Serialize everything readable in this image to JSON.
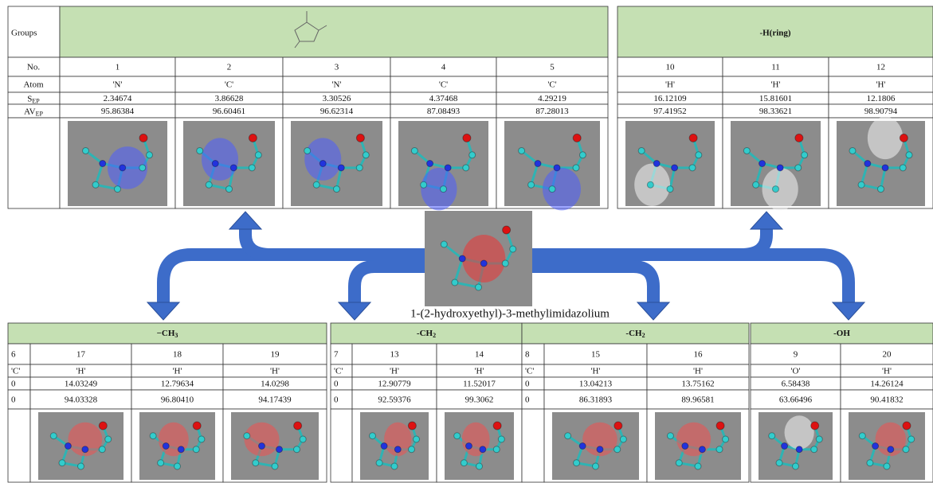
{
  "top_left": {
    "header_label": "Groups",
    "row_labels": [
      "No.",
      "Atom",
      {
        "text": "S",
        "sub": "EP"
      },
      {
        "text": "AV",
        "sub": "EP"
      }
    ],
    "columns": [
      [
        "1",
        "'N'",
        "2.34674",
        "95.86384"
      ],
      [
        "2",
        "'C'",
        "3.86628",
        "96.60461"
      ],
      [
        "3",
        "'N'",
        "3.30526",
        "96.62314"
      ],
      [
        "4",
        "'C'",
        "4.37468",
        "87.08493"
      ],
      [
        "5",
        "'C'",
        "4.29219",
        "87.28013"
      ]
    ]
  },
  "top_right": {
    "header": "-H(ring)",
    "columns": [
      [
        "10",
        "'H'",
        "16.12109",
        "97.41952"
      ],
      [
        "11",
        "'H'",
        "15.81601",
        "98.33621"
      ],
      [
        "12",
        "'H'",
        "12.1806",
        "98.90794"
      ]
    ]
  },
  "center_label": "1-(2-hydroxyethyl)-3-methylimidazolium",
  "bottom_tables": [
    {
      "header": {
        "text": "−CH",
        "sub": "3"
      },
      "columns": [
        [
          "6",
          "'C'",
          "0",
          "0"
        ],
        [
          "17",
          "'H'",
          "14.03249",
          "94.03328"
        ],
        [
          "18",
          "'H'",
          "12.79634",
          "96.80410"
        ],
        [
          "19",
          "'H'",
          "14.0298",
          "94.17439"
        ]
      ]
    },
    {
      "header": {
        "text": "-CH",
        "sub": "2"
      },
      "columns": [
        [
          "7",
          "'C'",
          "0",
          "0"
        ],
        [
          "13",
          "'H'",
          "12.90779",
          "92.59376"
        ],
        [
          "14",
          "'H'",
          "11.52017",
          "99.3062"
        ]
      ]
    },
    {
      "header": {
        "text": "-CH",
        "sub": "2"
      },
      "columns": [
        [
          "8",
          "'C'",
          "0",
          "0"
        ],
        [
          "15",
          "'H'",
          "13.04213",
          "86.31893"
        ],
        [
          "16",
          "'H'",
          "13.75162",
          "89.96581"
        ]
      ]
    },
    {
      "header": {
        "text": "-OH"
      },
      "columns": [
        [
          "9",
          "'O'",
          "6.58438",
          "63.66496"
        ],
        [
          "20",
          "'H'",
          "14.26124",
          "90.41832"
        ]
      ]
    }
  ]
}
